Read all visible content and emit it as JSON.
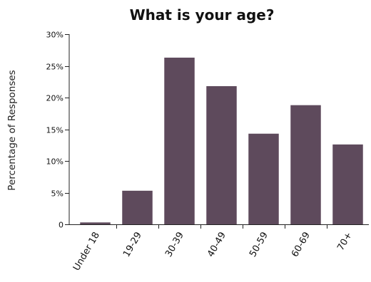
{
  "chart_data": {
    "type": "bar",
    "title": "What is your age?",
    "xlabel": "",
    "ylabel": "Percentage of Responses",
    "categories": [
      "Under 18",
      "19-29",
      "30-39",
      "40-49",
      "50-59",
      "60-69",
      "70+"
    ],
    "values": [
      0.3,
      5.3,
      26.3,
      21.8,
      14.3,
      18.8,
      12.6
    ],
    "ylim": [
      0,
      30
    ],
    "yticks": [
      0,
      5,
      10,
      15,
      20,
      25,
      30
    ],
    "ytick_labels": [
      "0",
      "5%",
      "10%",
      "15%",
      "20%",
      "25%",
      "30%"
    ],
    "grid": false,
    "legend": "none",
    "colors": {
      "bar": "#5e4a5c"
    }
  }
}
